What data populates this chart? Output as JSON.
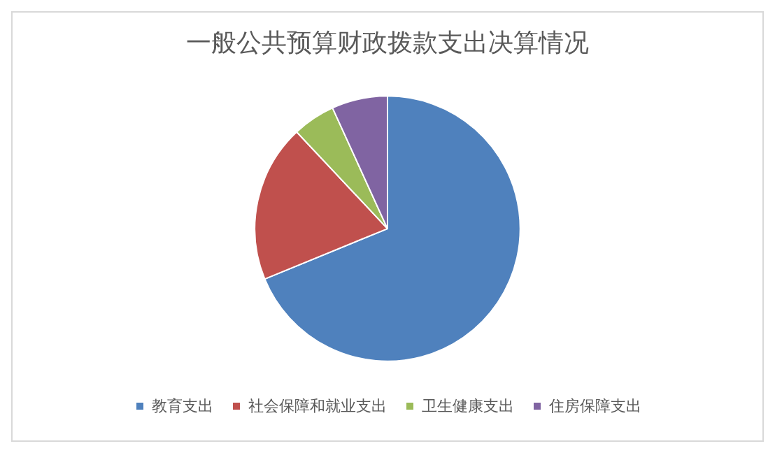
{
  "chart_data": {
    "type": "pie",
    "title": "一般公共预算财政拨款支出决算情况",
    "categories": [
      "教育支出",
      "社会保障和就业支出",
      "卫生健康支出",
      "住房保障支出"
    ],
    "values": [
      68.8,
      19.2,
      5.2,
      6.8
    ],
    "colors": [
      "#4f81bd",
      "#c0504d",
      "#9bbb59",
      "#8064a2"
    ],
    "legend": "bottom"
  }
}
